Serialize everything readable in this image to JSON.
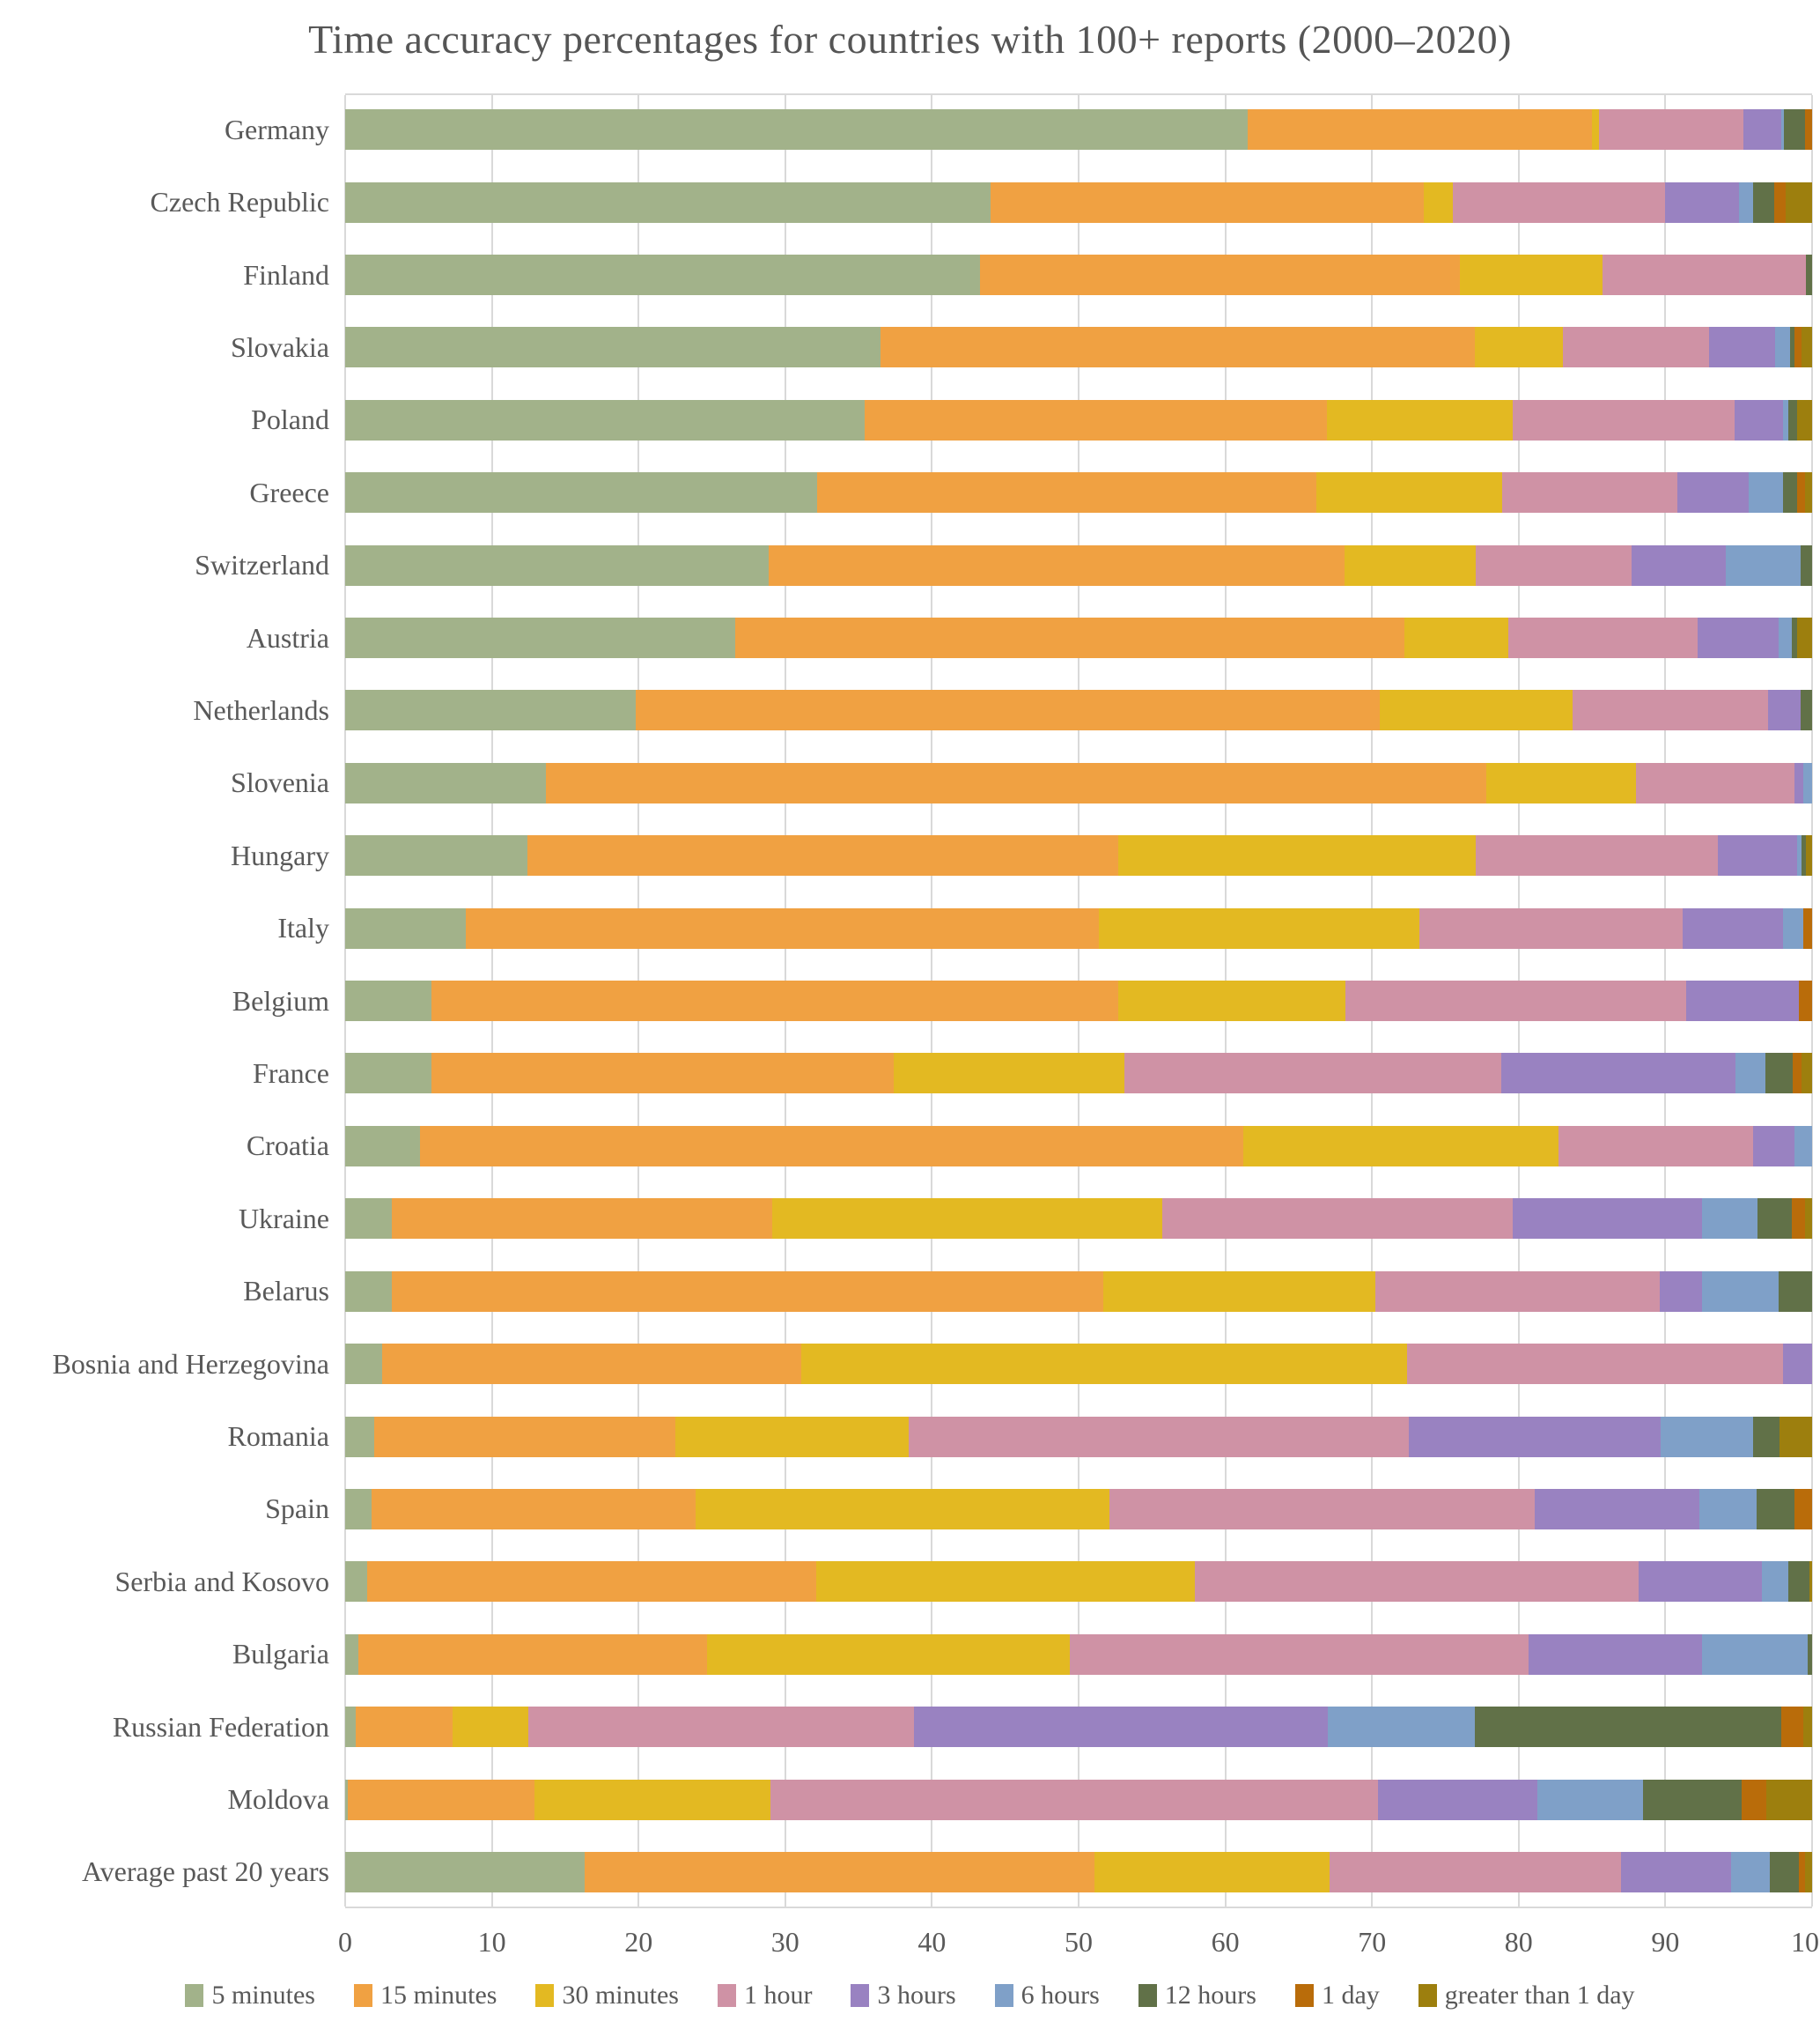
{
  "title": "Time accuracy percentages for countries with 100+ reports (2000–2020)",
  "chart_data": {
    "type": "bar",
    "stacked": true,
    "orientation": "horizontal",
    "grid": "vertical",
    "legend_position": "bottom",
    "xlabel": "",
    "ylabel": "",
    "xlim": [
      0,
      100
    ],
    "x_ticks": [
      0,
      10,
      20,
      30,
      40,
      50,
      60,
      70,
      80,
      90,
      100
    ],
    "categories": [
      "Germany",
      "Czech Republic",
      "Finland",
      "Slovakia",
      "Poland",
      "Greece",
      "Switzerland",
      "Austria",
      "Netherlands",
      "Slovenia",
      "Hungary",
      "Italy",
      "Belgium",
      "France",
      "Croatia",
      "Ukraine",
      "Belarus",
      "Bosnia and Herzegovina",
      "Romania",
      "Spain",
      "Serbia and Kosovo",
      "Bulgaria",
      "Russian Federation",
      "Moldova",
      "Average past 20 years"
    ],
    "series": [
      {
        "name": "5 minutes",
        "color": "#a2b28a",
        "values": [
          61.5,
          44.0,
          43.3,
          36.5,
          35.4,
          32.2,
          28.9,
          26.6,
          19.8,
          13.7,
          12.4,
          8.2,
          5.9,
          5.9,
          5.1,
          3.2,
          3.2,
          2.5,
          2.0,
          1.8,
          1.5,
          0.9,
          0.7,
          0.2,
          16.3
        ]
      },
      {
        "name": "15 minutes",
        "color": "#f0a142",
        "values": [
          23.5,
          29.5,
          32.7,
          40.5,
          31.5,
          34.0,
          39.2,
          45.6,
          50.7,
          64.1,
          40.3,
          43.2,
          46.8,
          31.5,
          56.1,
          25.9,
          48.5,
          28.6,
          20.5,
          22.1,
          30.6,
          23.8,
          6.6,
          12.7,
          34.8
        ]
      },
      {
        "name": "30 minutes",
        "color": "#e3b922",
        "values": [
          0.5,
          2.0,
          9.7,
          6.0,
          12.7,
          12.7,
          9.0,
          7.1,
          13.2,
          10.2,
          24.4,
          21.8,
          15.5,
          15.7,
          21.5,
          26.6,
          18.5,
          41.3,
          15.9,
          28.2,
          25.8,
          24.7,
          5.2,
          16.1,
          16.0
        ]
      },
      {
        "name": "1 hour",
        "color": "#cf92a5",
        "values": [
          9.8,
          14.5,
          13.9,
          10.0,
          15.1,
          11.9,
          10.6,
          12.9,
          13.3,
          10.8,
          16.5,
          18.0,
          23.2,
          25.7,
          13.3,
          23.9,
          19.4,
          25.6,
          34.1,
          29.0,
          30.3,
          31.3,
          26.3,
          41.4,
          19.9
        ]
      },
      {
        "name": "3 hours",
        "color": "#9982c1",
        "values": [
          2.6,
          5.0,
          0.0,
          4.5,
          3.3,
          4.9,
          6.4,
          5.5,
          2.2,
          0.6,
          5.4,
          6.8,
          7.7,
          16.0,
          2.8,
          12.9,
          2.9,
          2.0,
          17.2,
          11.2,
          8.4,
          11.8,
          28.2,
          10.9,
          7.5
        ]
      },
      {
        "name": "6 hours",
        "color": "#7fa0c8",
        "values": [
          0.2,
          1.0,
          0.0,
          1.0,
          0.4,
          2.3,
          5.1,
          0.9,
          0.0,
          0.6,
          0.3,
          1.4,
          0.0,
          2.0,
          1.2,
          3.8,
          5.2,
          0.0,
          6.3,
          3.9,
          1.8,
          7.2,
          10.0,
          7.2,
          2.6
        ]
      },
      {
        "name": "12 hours",
        "color": "#617148",
        "values": [
          1.4,
          1.4,
          0.4,
          0.3,
          0.6,
          1.0,
          0.8,
          0.4,
          0.8,
          0.0,
          0.3,
          0.0,
          0.0,
          1.9,
          0.0,
          2.3,
          2.3,
          0.0,
          1.8,
          2.6,
          1.4,
          0.3,
          20.9,
          6.7,
          2.0
        ]
      },
      {
        "name": "1 day",
        "color": "#b96c0a",
        "values": [
          0.5,
          0.8,
          0.0,
          0.5,
          0.0,
          0.5,
          0.0,
          0.0,
          0.0,
          0.0,
          0.0,
          0.6,
          0.9,
          0.6,
          0.0,
          0.9,
          0.0,
          0.0,
          0.0,
          1.2,
          0.0,
          0.0,
          1.5,
          1.7,
          0.4
        ]
      },
      {
        "name": "greater than 1 day",
        "color": "#9d7f0e",
        "values": [
          0.0,
          1.8,
          0.0,
          0.7,
          1.0,
          0.5,
          0.0,
          1.0,
          0.0,
          0.0,
          0.4,
          0.0,
          0.0,
          0.7,
          0.0,
          0.5,
          0.0,
          0.0,
          2.2,
          0.0,
          0.2,
          0.0,
          0.6,
          3.1,
          0.5
        ]
      }
    ]
  }
}
